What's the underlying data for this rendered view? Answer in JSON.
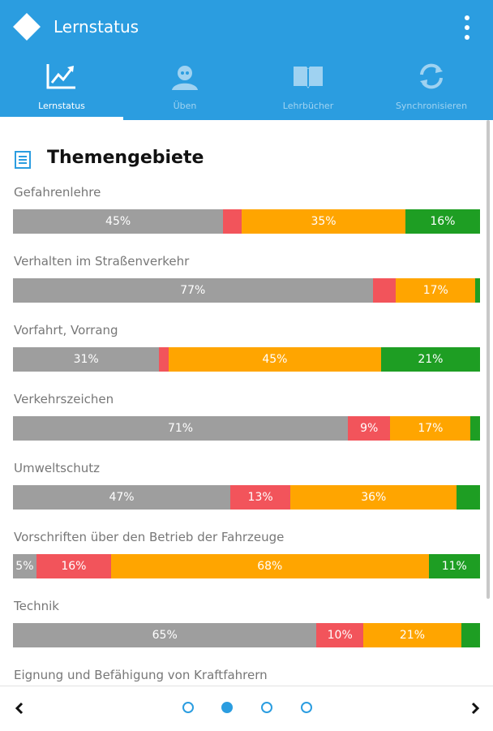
{
  "app": {
    "title": "Lernstatus",
    "colors": {
      "accent": "#2b9de0",
      "grey": "#9e9e9e",
      "red": "#f2545b",
      "orange": "#ffa500",
      "green": "#1e9e23"
    }
  },
  "tabs": [
    {
      "label": "Lernstatus",
      "icon": "chart-line-icon",
      "active": true
    },
    {
      "label": "Üben",
      "icon": "person-icon",
      "active": false
    },
    {
      "label": "Lehrbücher",
      "icon": "book-icon",
      "active": false
    },
    {
      "label": "Synchronisieren",
      "icon": "sync-icon",
      "active": false
    }
  ],
  "section": {
    "title": "Themengebiete",
    "icon": "list-icon"
  },
  "topics": [
    {
      "label": "Gefahrenlehre",
      "segments": [
        {
          "type": "grey",
          "value": 45,
          "text": "45%"
        },
        {
          "type": "red",
          "value": 4,
          "text": ""
        },
        {
          "type": "orange",
          "value": 35,
          "text": "35%"
        },
        {
          "type": "green",
          "value": 16,
          "text": "16%"
        }
      ]
    },
    {
      "label": "Verhalten im Straßenverkehr",
      "segments": [
        {
          "type": "grey",
          "value": 77,
          "text": "77%"
        },
        {
          "type": "red",
          "value": 5,
          "text": ""
        },
        {
          "type": "orange",
          "value": 17,
          "text": "17%"
        },
        {
          "type": "green",
          "value": 1,
          "text": ""
        }
      ]
    },
    {
      "label": "Vorfahrt, Vorrang",
      "segments": [
        {
          "type": "grey",
          "value": 31,
          "text": "31%"
        },
        {
          "type": "red",
          "value": 2,
          "text": ""
        },
        {
          "type": "orange",
          "value": 45,
          "text": "45%"
        },
        {
          "type": "green",
          "value": 21,
          "text": "21%"
        }
      ]
    },
    {
      "label": "Verkehrszeichen",
      "segments": [
        {
          "type": "grey",
          "value": 71,
          "text": "71%"
        },
        {
          "type": "red",
          "value": 9,
          "text": "9%"
        },
        {
          "type": "orange",
          "value": 17,
          "text": "17%"
        },
        {
          "type": "green",
          "value": 2,
          "text": ""
        }
      ]
    },
    {
      "label": "Umweltschutz",
      "segments": [
        {
          "type": "grey",
          "value": 47,
          "text": "47%"
        },
        {
          "type": "red",
          "value": 13,
          "text": "13%"
        },
        {
          "type": "orange",
          "value": 36,
          "text": "36%"
        },
        {
          "type": "green",
          "value": 5,
          "text": ""
        }
      ]
    },
    {
      "label": "Vorschriften über den Betrieb der Fahrzeuge",
      "segments": [
        {
          "type": "grey",
          "value": 5,
          "text": "5%"
        },
        {
          "type": "red",
          "value": 16,
          "text": "16%"
        },
        {
          "type": "orange",
          "value": 68,
          "text": "68%"
        },
        {
          "type": "green",
          "value": 11,
          "text": "11%"
        }
      ]
    },
    {
      "label": "Technik",
      "segments": [
        {
          "type": "grey",
          "value": 65,
          "text": "65%"
        },
        {
          "type": "red",
          "value": 10,
          "text": "10%"
        },
        {
          "type": "orange",
          "value": 21,
          "text": "21%"
        },
        {
          "type": "green",
          "value": 4,
          "text": ""
        }
      ]
    },
    {
      "label": "Eignung und Befähigung von Kraftfahrern",
      "segments": []
    }
  ],
  "pager": {
    "count": 4,
    "active_index": 1
  }
}
